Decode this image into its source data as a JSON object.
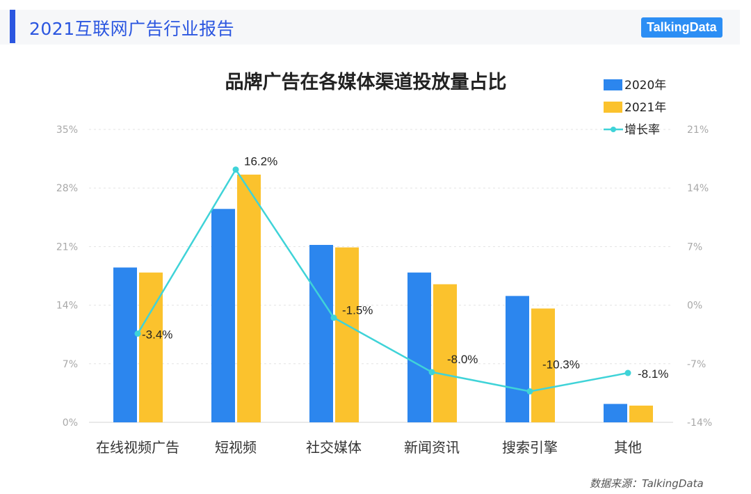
{
  "header": {
    "report_title": "2021互联网广告行业报告",
    "brand": "TalkingData"
  },
  "footer": {
    "source": "数据来源：TalkingData"
  },
  "colors": {
    "series_2020": "#2c86ee",
    "series_2021": "#fbc22d",
    "growth_line": "#3fd3d8",
    "accent": "#2b56e0"
  },
  "chart_data": {
    "type": "bar",
    "title": "品牌广告在各媒体渠道投放量占比",
    "categories": [
      "在线视频广告",
      "短视频",
      "社交媒体",
      "新闻资讯",
      "搜索引擎",
      "其他"
    ],
    "series": [
      {
        "name": "2020年",
        "type": "bar",
        "axis": "left",
        "values": [
          18.5,
          25.5,
          21.2,
          17.9,
          15.1,
          2.2
        ]
      },
      {
        "name": "2021年",
        "type": "bar",
        "axis": "left",
        "values": [
          17.9,
          29.6,
          20.9,
          16.5,
          13.6,
          2.0
        ]
      },
      {
        "name": "增长率",
        "type": "line",
        "axis": "right",
        "values": [
          -3.4,
          16.2,
          -1.5,
          -8.0,
          -10.3,
          -8.1
        ],
        "labels": [
          "-3.4%",
          "16.2%",
          "-1.5%",
          "-8.0%",
          "-10.3%",
          "-8.1%"
        ]
      }
    ],
    "y_left": {
      "ylim": [
        0,
        35
      ],
      "ticks": [
        "0%",
        "7%",
        "14%",
        "21%",
        "28%",
        "35%"
      ]
    },
    "y_right": {
      "ylim": [
        -14,
        21
      ],
      "ticks": [
        "-14%",
        "-7%",
        "0%",
        "7%",
        "14%",
        "21%"
      ]
    },
    "grid": true,
    "legend": "top-right"
  }
}
